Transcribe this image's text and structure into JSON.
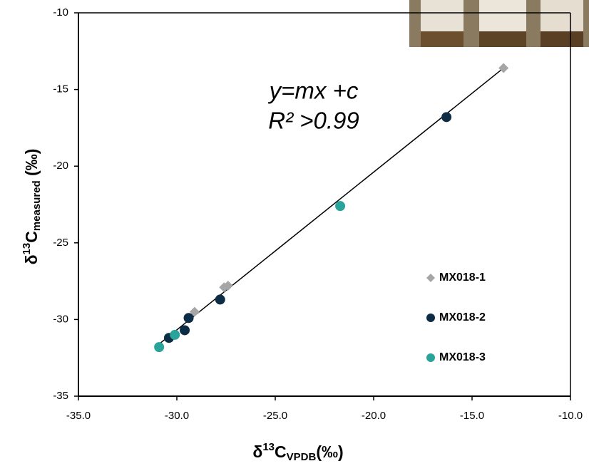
{
  "chart_data": {
    "type": "scatter",
    "xlabel": {
      "prefix": "δ",
      "sup": "13",
      "main": "C",
      "sub": "VPDB",
      "suffix": "(‰)"
    },
    "ylabel": {
      "prefix": "δ",
      "sup": "13",
      "main": "C",
      "sub": "measured",
      "suffix": " (‰)"
    },
    "annotations": [
      "y=mx +c",
      "R² >0.99"
    ],
    "xlim": [
      -35,
      -10
    ],
    "ylim": [
      -35,
      -10
    ],
    "xticks": [
      {
        "value": -35,
        "label": "-35.0"
      },
      {
        "value": -30,
        "label": "-30.0"
      },
      {
        "value": -25,
        "label": "-25.0"
      },
      {
        "value": -20,
        "label": "-20.0"
      },
      {
        "value": -15,
        "label": "-15.0"
      },
      {
        "value": -10,
        "label": "-10.0"
      }
    ],
    "yticks": [
      -10,
      -15,
      -20,
      -25,
      -30,
      -35
    ],
    "series": [
      {
        "name": "MX018-1",
        "color": "#a6a6a6",
        "marker": "diamond",
        "x": [
          -13.4,
          -27.4,
          -27.6,
          -29.1
        ],
        "values": [
          -13.6,
          -27.8,
          -27.9,
          -29.5
        ]
      },
      {
        "name": "MX018-2",
        "color": "#0d2c45",
        "marker": "circle",
        "x": [
          -16.3,
          -27.8,
          -29.4,
          -29.6,
          -30.4
        ],
        "values": [
          -16.8,
          -28.7,
          -29.9,
          -30.7,
          -31.2
        ]
      },
      {
        "name": "MX018-3",
        "color": "#2aa39a",
        "marker": "circle",
        "x": [
          -21.7,
          -30.1,
          -30.9
        ],
        "values": [
          -22.6,
          -31.0,
          -31.8
        ]
      }
    ],
    "trendline": {
      "color": "#000000",
      "x": [
        -30.9,
        -13.4
      ],
      "values": [
        -31.6,
        -13.6
      ]
    }
  }
}
